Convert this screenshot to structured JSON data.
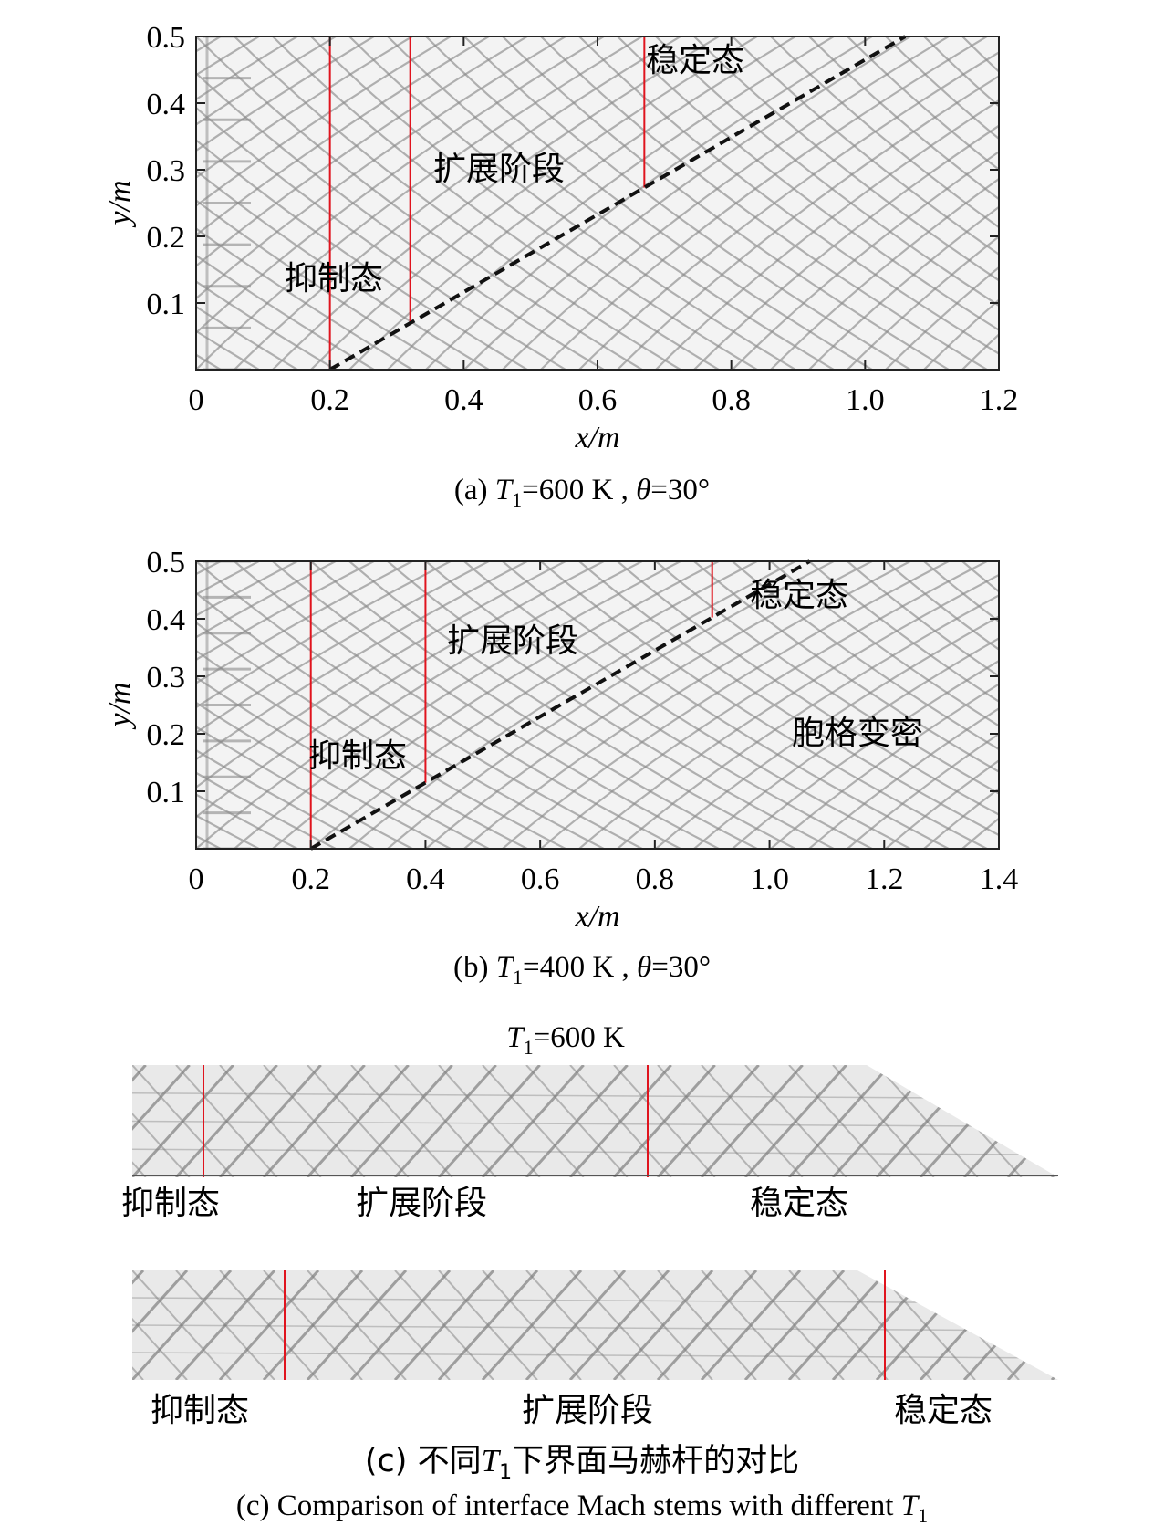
{
  "panels": [
    {
      "id": "a",
      "caption": "(a) T1=600 K , θ=30°",
      "ylabel": "y/m",
      "xlabel": "x/m",
      "xlim": [
        0,
        1.2
      ],
      "ylim": [
        0,
        0.5
      ],
      "xticks": [
        "0",
        "0.2",
        "0.4",
        "0.6",
        "0.8",
        "1.0",
        "1.2"
      ],
      "yticks": [
        "0.1",
        "0.2",
        "0.3",
        "0.4",
        "0.5"
      ],
      "red_lines_x": [
        0.2,
        0.32,
        0.67
      ],
      "wedge_start": [
        0.2,
        0
      ],
      "wedge_end": [
        1.06,
        0.5
      ],
      "annotations": [
        "稳定态",
        "扩展阶段",
        "抑制态"
      ]
    },
    {
      "id": "b",
      "caption": "(b) T1=400 K , θ=30°",
      "ylabel": "y/m",
      "xlabel": "x/m",
      "xlim": [
        0,
        1.4
      ],
      "ylim": [
        0,
        0.5
      ],
      "xticks": [
        "0",
        "0.2",
        "0.4",
        "0.6",
        "0.8",
        "1.0",
        "1.2",
        "1.4"
      ],
      "yticks": [
        "0.1",
        "0.2",
        "0.3",
        "0.4",
        "0.5"
      ],
      "red_lines_x": [
        0.2,
        0.4,
        0.9
      ],
      "wedge_start": [
        0.2,
        0
      ],
      "wedge_end": [
        1.07,
        0.5
      ],
      "annotations": [
        "稳定态",
        "扩展阶段",
        "抑制态",
        "胞格变密"
      ]
    }
  ],
  "panel_c": {
    "title": "T1=600 K",
    "top_labels": [
      "抑制态",
      "扩展阶段",
      "稳定态"
    ],
    "bottom_labels": [
      "抑制态",
      "扩展阶段",
      "稳定态"
    ],
    "caption_zh": "(c) 不同T1下界面马赫杆的对比",
    "caption_en": "(c) Comparison of interface Mach stems with different T1"
  }
}
